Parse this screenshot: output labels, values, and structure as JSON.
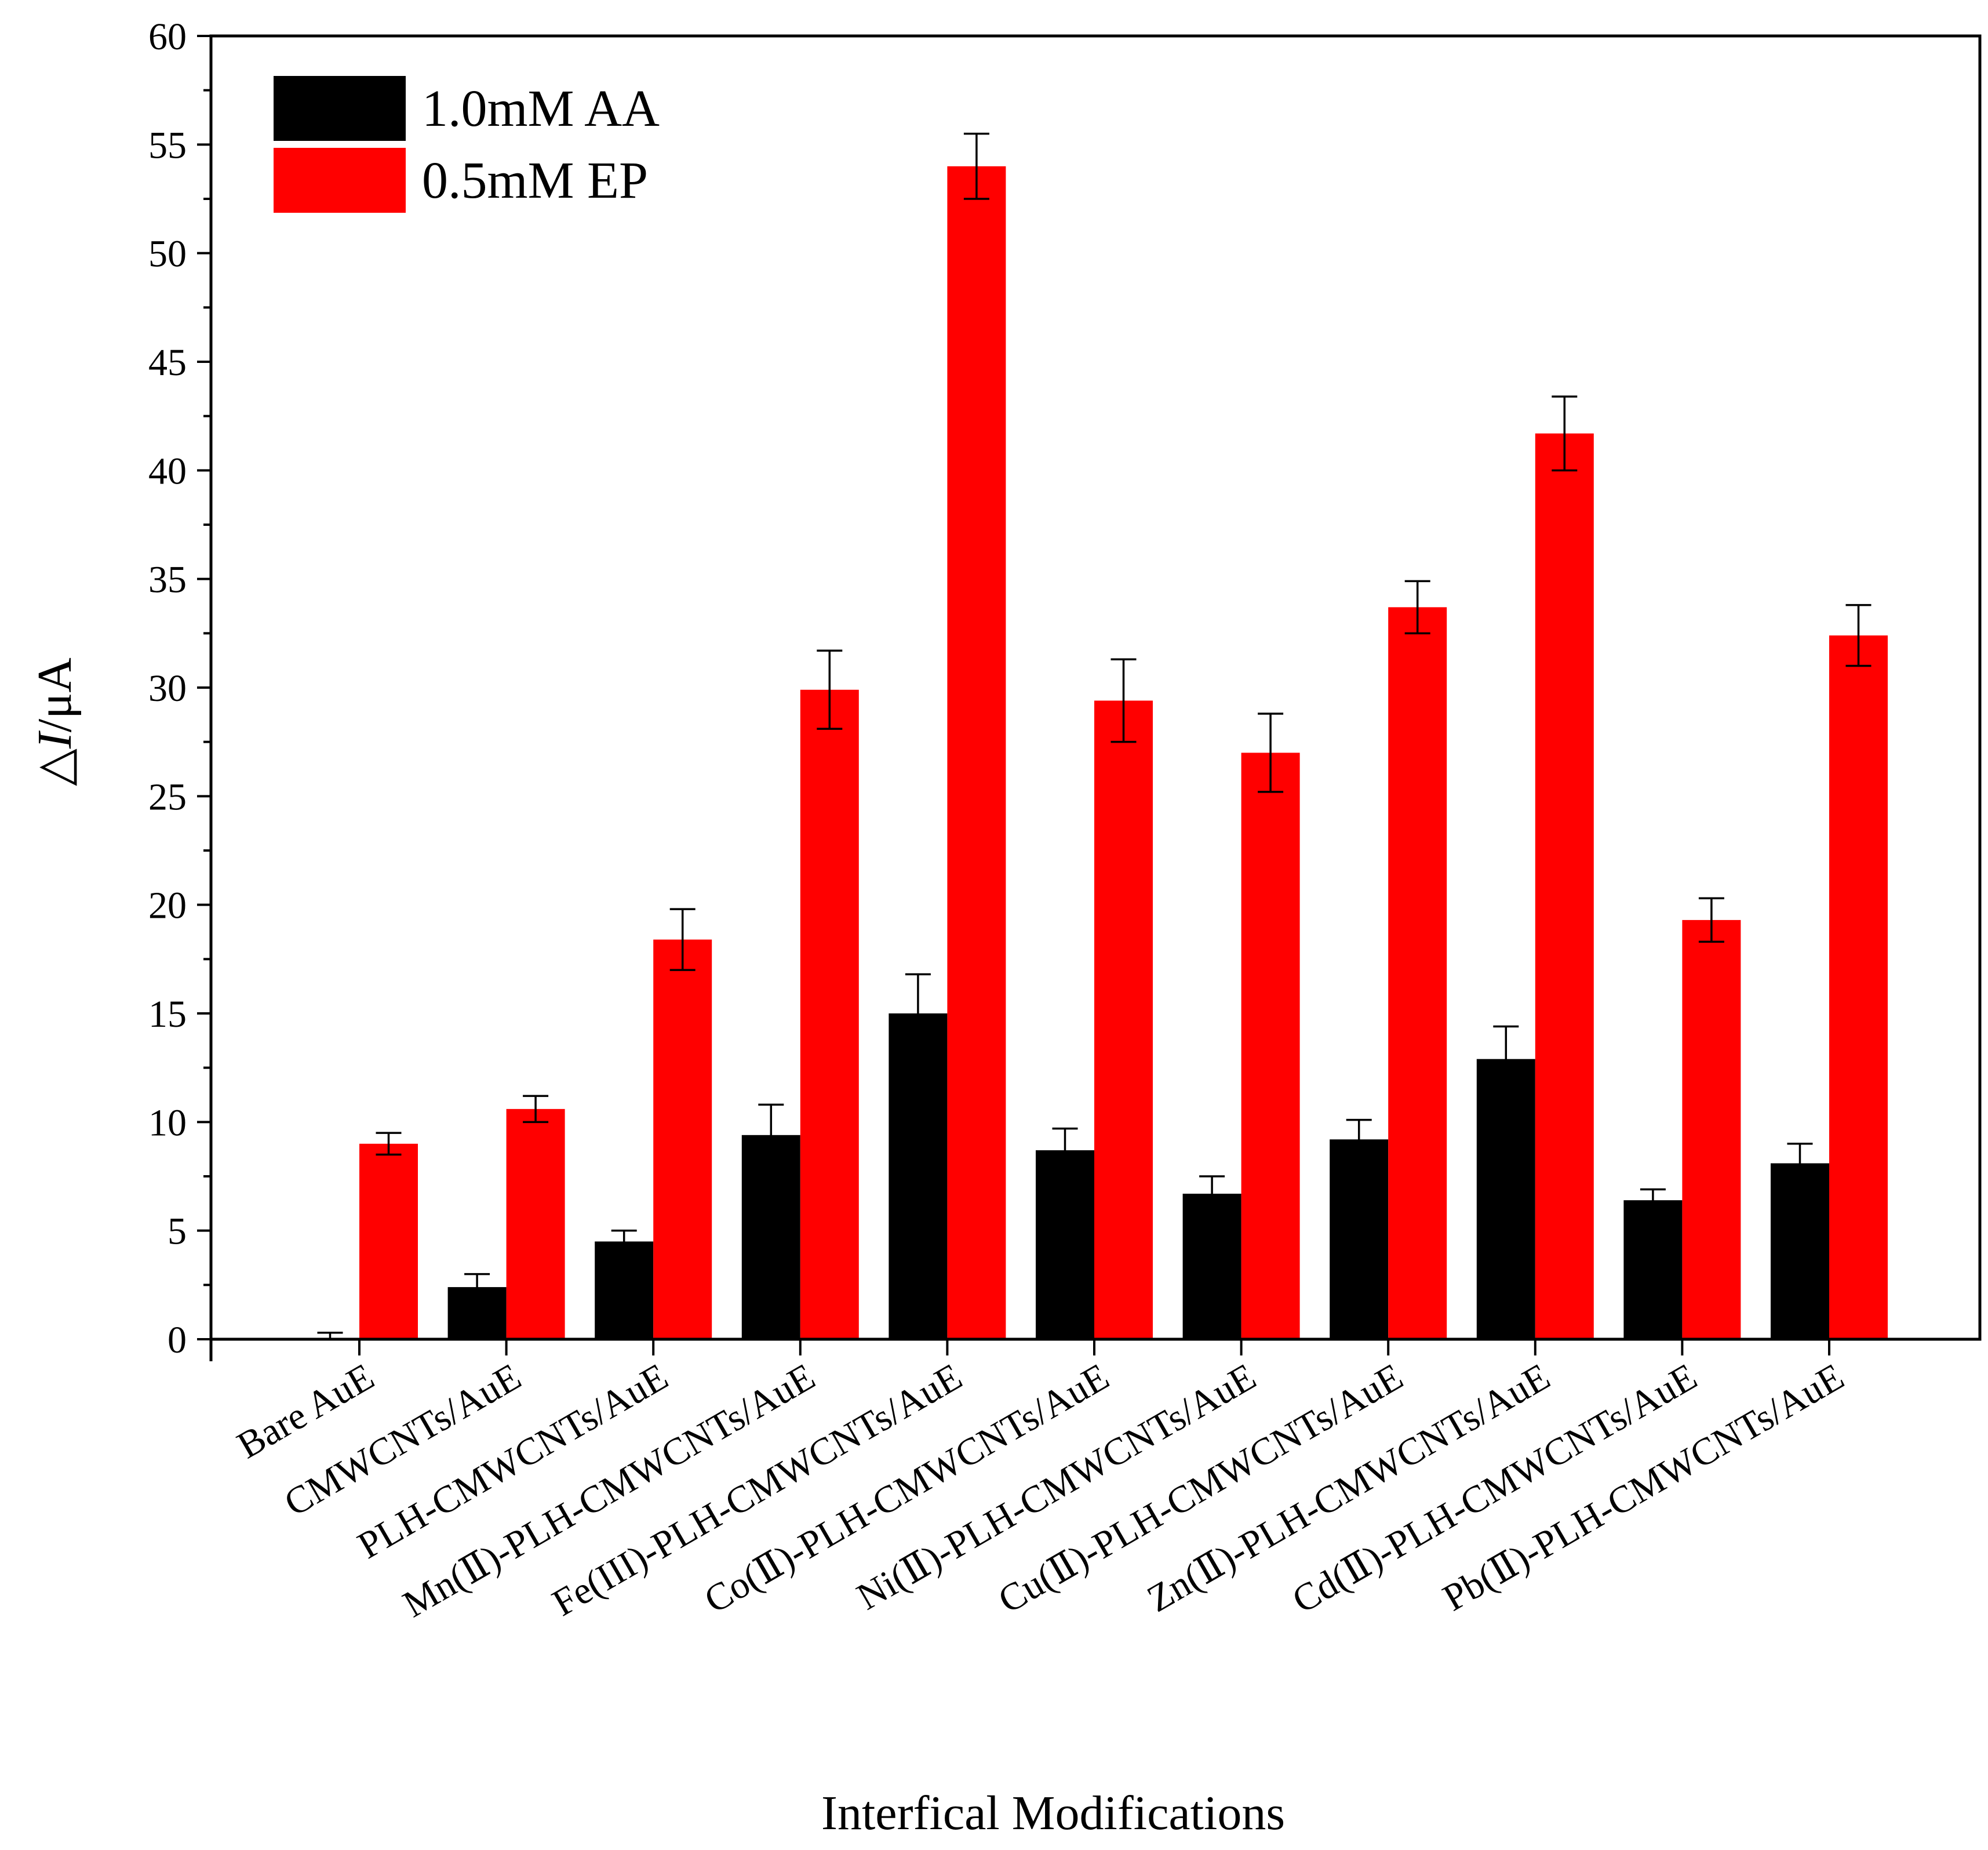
{
  "chart_data": {
    "type": "bar",
    "title": "",
    "xlabel": "Interfical Modifications",
    "ylabel_symbol": "△",
    "ylabel_var": "I",
    "ylabel_unit": "/μA",
    "ylim": [
      0,
      60
    ],
    "yticks": [
      0,
      5,
      10,
      15,
      20,
      25,
      30,
      35,
      40,
      45,
      50,
      55,
      60
    ],
    "grid": false,
    "legend_position": "top-left",
    "categories": [
      "Bare AuE",
      "CMWCNTs/AuE",
      "PLH-CMWCNTs/AuE",
      "Mn(Ⅱ)-PLH-CMWCNTs/AuE",
      "Fe(III)-PLH-CMWCNTs/AuE",
      "Co(Ⅱ)-PLH-CMWCNTs/AuE",
      "Ni(Ⅱ)-PLH-CMWCNTs/AuE",
      "Cu(Ⅱ)-PLH-CMWCNTs/AuE",
      "Zn(Ⅱ)-PLH-CMWCNTs/AuE",
      "Cd(Ⅱ)-PLH-CMWCNTs/AuE",
      "Pb(Ⅱ)-PLH-CMWCNTs/AuE"
    ],
    "series": [
      {
        "name": "1.0mM AA",
        "color": "#000000",
        "values": [
          0,
          2.4,
          4.5,
          9.4,
          15.0,
          8.7,
          6.7,
          9.2,
          12.9,
          6.4,
          8.1
        ],
        "errors": [
          0.3,
          0.6,
          0.5,
          1.4,
          1.8,
          1.0,
          0.8,
          0.9,
          1.5,
          0.5,
          0.9
        ]
      },
      {
        "name": "0.5mM EP",
        "color": "#ff0000",
        "values": [
          9.0,
          10.6,
          18.4,
          29.9,
          54.0,
          29.4,
          27.0,
          33.7,
          41.7,
          19.3,
          32.4
        ],
        "errors": [
          0.5,
          0.6,
          1.4,
          1.8,
          1.5,
          1.9,
          1.8,
          1.2,
          1.7,
          1.0,
          1.4
        ]
      }
    ]
  }
}
